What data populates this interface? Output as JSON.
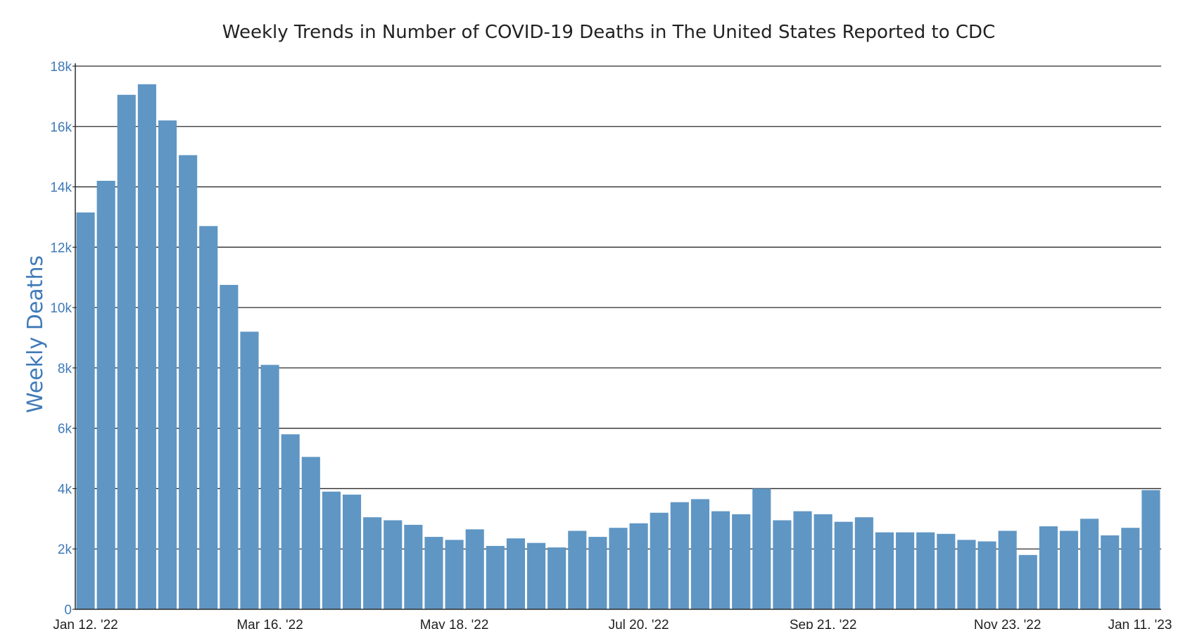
{
  "colors": {
    "bar": "#5f96c4",
    "axis_text": "#3f7ab8",
    "x_tick_text": "#222222",
    "grid": "#2b2b2b",
    "axis_line": "#2b2b2b",
    "title": "#222222"
  },
  "chart_data": {
    "type": "bar",
    "title": "Weekly Trends in Number of COVID-19 Deaths in The United States Reported to CDC",
    "xlabel": "",
    "ylabel": "Weekly Deaths",
    "ylim": [
      0,
      18000
    ],
    "y_ticks": [
      {
        "value": 0,
        "label": "0"
      },
      {
        "value": 2000,
        "label": "2k"
      },
      {
        "value": 4000,
        "label": "4k"
      },
      {
        "value": 6000,
        "label": "6k"
      },
      {
        "value": 8000,
        "label": "8k"
      },
      {
        "value": 10000,
        "label": "10k"
      },
      {
        "value": 12000,
        "label": "12k"
      },
      {
        "value": 14000,
        "label": "14k"
      },
      {
        "value": 16000,
        "label": "16k"
      },
      {
        "value": 18000,
        "label": "18k"
      }
    ],
    "x_ticks": [
      {
        "label": "Jan 12, '22",
        "week_index": 0
      },
      {
        "label": "Mar 16, '22",
        "week_index": 9
      },
      {
        "label": "May 18, '22",
        "week_index": 18
      },
      {
        "label": "Jul 20, '22",
        "week_index": 27
      },
      {
        "label": "Sep 21, '22",
        "week_index": 36
      },
      {
        "label": "Nov 23, '22",
        "week_index": 45
      },
      {
        "label": "Jan 11, '23",
        "week_index": 52
      }
    ],
    "grid": true,
    "legend": "none",
    "values": [
      13150,
      14200,
      17050,
      17400,
      16200,
      15050,
      12700,
      10750,
      9200,
      8100,
      5800,
      5050,
      3900,
      3800,
      3050,
      2950,
      2800,
      2400,
      2300,
      2650,
      2100,
      2350,
      2200,
      2050,
      2600,
      2400,
      2700,
      2850,
      3200,
      3550,
      3650,
      3250,
      3150,
      4000,
      2950,
      3250,
      3150,
      2900,
      3050,
      2550,
      2550,
      2550,
      2500,
      2300,
      2250,
      2600,
      1800,
      2750,
      2600,
      3000,
      2450,
      2700,
      3950
    ]
  }
}
